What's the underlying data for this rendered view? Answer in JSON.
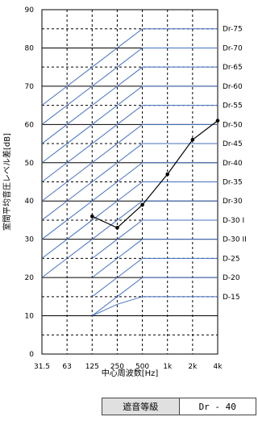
{
  "chart_data": {
    "type": "line",
    "ylabel": "室間平均音圧レベル差[dB]",
    "xlabel": "中心周波数[Hz]",
    "categories": [
      "31.5",
      "63",
      "125",
      "250",
      "500",
      "1k",
      "2k",
      "4k"
    ],
    "yticks": [
      "0",
      "10",
      "20",
      "30",
      "40",
      "50",
      "60",
      "70",
      "80",
      "90"
    ],
    "ylim": [
      0,
      90
    ],
    "grid": true,
    "colors": {
      "reference": "#4472c4",
      "measured": "#000000",
      "grid": "#000000"
    },
    "measured": {
      "x": [
        "125",
        "250",
        "500",
        "1k",
        "2k",
        "4k"
      ],
      "values": [
        36,
        33,
        39,
        47,
        56,
        61
      ]
    },
    "reference_curves": [
      {
        "name": "Dr-75",
        "values": [
          65,
          70,
          75,
          80,
          85,
          85,
          85,
          85
        ]
      },
      {
        "name": "Dr-70",
        "values": [
          60,
          65,
          70,
          75,
          80,
          80,
          80,
          80
        ]
      },
      {
        "name": "Dr-65",
        "values": [
          55,
          60,
          65,
          70,
          75,
          75,
          75,
          75
        ]
      },
      {
        "name": "Dr-60",
        "values": [
          50,
          55,
          60,
          65,
          70,
          70,
          70,
          70
        ]
      },
      {
        "name": "Dr-55",
        "values": [
          45,
          50,
          55,
          60,
          65,
          65,
          65,
          65
        ]
      },
      {
        "name": "Dr-50",
        "values": [
          40,
          45,
          50,
          55,
          60,
          60,
          60,
          60
        ]
      },
      {
        "name": "Dr-45",
        "values": [
          35,
          40,
          45,
          50,
          55,
          55,
          55,
          55
        ]
      },
      {
        "name": "Dr-40",
        "values": [
          30,
          35,
          40,
          45,
          50,
          50,
          50,
          50
        ]
      },
      {
        "name": "Dr-35",
        "values": [
          25,
          30,
          35,
          40,
          45,
          45,
          45,
          45
        ]
      },
      {
        "name": "Dr-30",
        "values": [
          20,
          25,
          30,
          35,
          40,
          40,
          40,
          40
        ]
      },
      {
        "name": "D-30 I",
        "values": [
          null,
          null,
          25,
          30,
          35,
          35,
          35,
          35
        ]
      },
      {
        "name": "D-30 II",
        "values": [
          null,
          null,
          20,
          25,
          30,
          30,
          30,
          30
        ]
      },
      {
        "name": "D-25",
        "values": [
          null,
          null,
          15,
          20,
          25,
          25,
          25,
          25
        ]
      },
      {
        "name": "D-20",
        "values": [
          null,
          null,
          10,
          15,
          20,
          20,
          20,
          20
        ]
      },
      {
        "name": "D-15",
        "values": [
          null,
          null,
          10,
          13,
          15,
          15,
          15,
          15
        ]
      }
    ]
  },
  "rating": {
    "label": "遮音等級",
    "value": "Dr - 40"
  }
}
